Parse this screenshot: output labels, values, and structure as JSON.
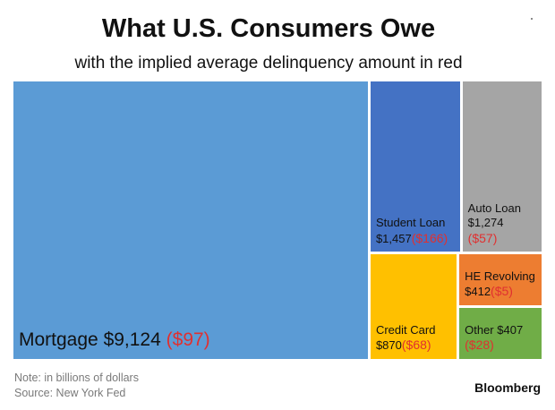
{
  "chart_data": {
    "type": "treemap",
    "title": "What U.S. Consumers Owe",
    "subtitle": "with the implied average delinquency amount in red",
    "unit": "billions of dollars",
    "items": [
      {
        "name": "Mortgage",
        "value": 9124,
        "value_label": "$9,124",
        "delinquency": 97,
        "delinquency_label": "($97)",
        "color": "#5b9bd5"
      },
      {
        "name": "Student Loan",
        "value": 1457,
        "value_label": "$1,457",
        "delinquency": 166,
        "delinquency_label": "($166)",
        "color": "#4472c4"
      },
      {
        "name": "Auto Loan",
        "value": 1274,
        "value_label": "$1,274",
        "delinquency": 57,
        "delinquency_label": "($57)",
        "color": "#a5a5a5"
      },
      {
        "name": "Credit Card",
        "value": 870,
        "value_label": "$870",
        "delinquency": 68,
        "delinquency_label": "($68)",
        "color": "#ffc000"
      },
      {
        "name": "HE Revolving",
        "value": 412,
        "value_label": "$412",
        "delinquency": 5,
        "delinquency_label": "($5)",
        "color": "#ed7d31"
      },
      {
        "name": "Other",
        "value": 407,
        "value_label": "$407",
        "delinquency": 28,
        "delinquency_label": "($28)",
        "color": "#70ad47"
      }
    ]
  },
  "footer": {
    "note": "Note: in billions of dollars",
    "source": "Source: New York Fed",
    "brand": "Bloomberg"
  }
}
